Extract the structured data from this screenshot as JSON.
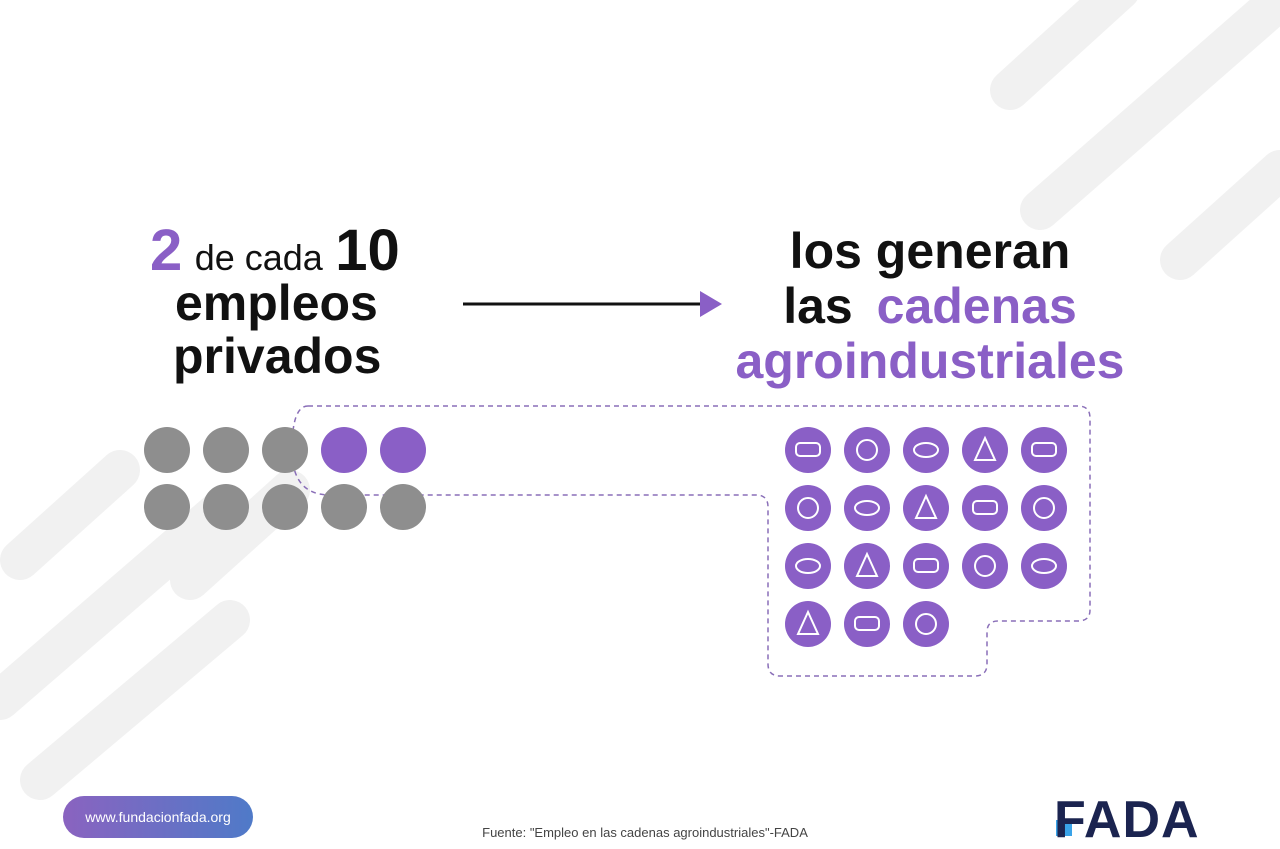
{
  "headline": {
    "count": 2,
    "connector": "de cada",
    "total": 10,
    "line2": "empleos",
    "line3": "privados"
  },
  "result": {
    "line1": "los generan",
    "line2_plain": "las",
    "line2_highlight": "cadenas",
    "line3": "agroindustriales"
  },
  "footer": {
    "website": "www.fundacionfada.org",
    "source": "Fuente: \"Empleo en las cadenas agroindustriales\"-FADA",
    "logo": "FADA"
  }
}
